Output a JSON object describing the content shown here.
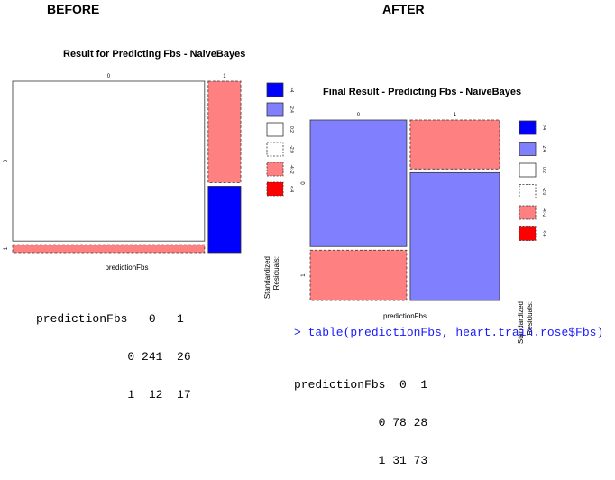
{
  "headings": {
    "before": "BEFORE",
    "after": "AFTER"
  },
  "chart_data": [
    {
      "type": "mosaic",
      "title": "Result for Predicting Fbs - NaiveBayes",
      "xlabel": "predictionFbs",
      "ylabel": "",
      "col_categories": [
        "0",
        "1"
      ],
      "row_categories": [
        "0",
        "1"
      ],
      "counts": [
        [
          241,
          26
        ],
        [
          12,
          17
        ]
      ],
      "residual_class": [
        [
          "white",
          "light-red"
        ],
        [
          "light-red",
          "blue"
        ]
      ],
      "legend": {
        "title": "Standardized Residuals:",
        "labels": [
          ">4",
          "2:4",
          "0:2",
          "-2:0",
          "-4:-2",
          "<-4"
        ],
        "colors": [
          "#0000ff",
          "#8080ff",
          "#ffffff",
          "#ffffff",
          "#ff8080",
          "#ff0000"
        ]
      }
    },
    {
      "type": "mosaic",
      "title": "Final Result - Predicting Fbs - NaiveBayes",
      "xlabel": "predictionFbs",
      "ylabel": "",
      "col_categories": [
        "0",
        "1"
      ],
      "row_categories": [
        "0",
        "1"
      ],
      "counts": [
        [
          78,
          28
        ],
        [
          31,
          73
        ]
      ],
      "residual_class": [
        [
          "light-blue",
          "light-red"
        ],
        [
          "light-red",
          "light-blue"
        ]
      ],
      "legend": {
        "title": "Standardized Residuals:",
        "labels": [
          ">4",
          "2:4",
          "0:2",
          "-2:0",
          "-4:-2",
          "<-4"
        ],
        "colors": [
          "#0000ff",
          "#8080ff",
          "#ffffff",
          "#ffffff",
          "#ff8080",
          "#ff0000"
        ]
      }
    }
  ],
  "console_before": {
    "header": "predictionFbs   0   1",
    "row0": "             0 241  26",
    "row1": "             1  12  17"
  },
  "console_after": {
    "command": "> table(predictionFbs, heart.train.rose$Fbs)",
    "header": "predictionFbs  0  1",
    "row0": "            0 78 28",
    "row1": "            1 31 73"
  },
  "colors": {
    "white": "#ffffff",
    "light-red": "#ff8080",
    "light-blue": "#8080ff",
    "blue": "#0000ff",
    "red": "#ff0000",
    "command": "#1a1aff"
  }
}
